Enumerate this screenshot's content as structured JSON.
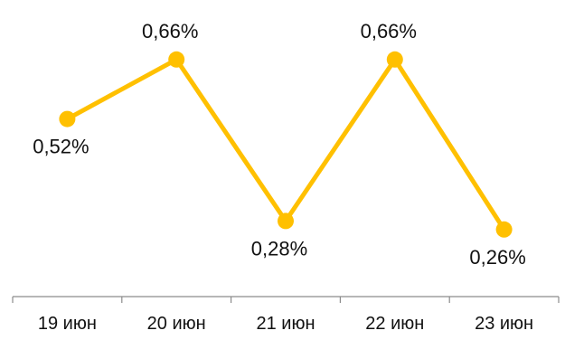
{
  "chart_data": {
    "type": "line",
    "categories": [
      "19 июн",
      "20 июн",
      "21 июн",
      "22 июн",
      "23 июн"
    ],
    "series": [
      {
        "values": [
          0.52,
          0.66,
          0.28,
          0.66,
          0.26
        ],
        "labels": [
          "0,52%",
          "0,66%",
          "0,28%",
          "0,66%",
          "0,26%"
        ],
        "color": "#FFC000"
      }
    ],
    "ylim": [
      0,
      0.8
    ],
    "grid": false,
    "axis_color": "#8c8c8c",
    "text_color": "#111111"
  }
}
